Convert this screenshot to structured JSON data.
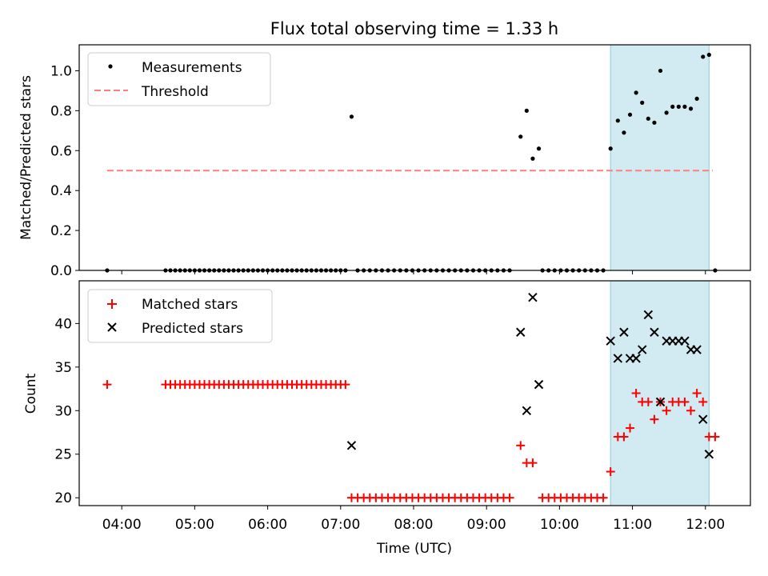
{
  "chart_data": [
    {
      "type": "scatter",
      "title": "Flux total observing time = 1.33 h",
      "xlabel": "",
      "ylabel": "Matched/Predicted stars",
      "xlim": [
        "03:25",
        "12:37"
      ],
      "ylim": [
        0,
        1.13
      ],
      "yticks": [
        0.0,
        0.2,
        0.4,
        0.6,
        0.8,
        1.0
      ],
      "ytick_labels": [
        "0.0",
        "0.2",
        "0.4",
        "0.6",
        "0.8",
        "1.0"
      ],
      "legend_position": "top-left",
      "highlight_span": {
        "from": "10:42",
        "to": "12:03",
        "color": "#add8e6"
      },
      "series": [
        {
          "name": "Measurements",
          "kind": "dots",
          "color": "#000000",
          "points": [
            [
              "03:48",
              0.0
            ],
            [
              "04:36",
              0.0
            ],
            [
              "04:40",
              0.0
            ],
            [
              "04:44",
              0.0
            ],
            [
              "04:48",
              0.0
            ],
            [
              "04:52",
              0.0
            ],
            [
              "04:56",
              0.0
            ],
            [
              "05:00",
              0.0
            ],
            [
              "05:04",
              0.0
            ],
            [
              "05:08",
              0.0
            ],
            [
              "05:12",
              0.0
            ],
            [
              "05:16",
              0.0
            ],
            [
              "05:20",
              0.0
            ],
            [
              "05:24",
              0.0
            ],
            [
              "05:28",
              0.0
            ],
            [
              "05:32",
              0.0
            ],
            [
              "05:36",
              0.0
            ],
            [
              "05:40",
              0.0
            ],
            [
              "05:44",
              0.0
            ],
            [
              "05:48",
              0.0
            ],
            [
              "05:52",
              0.0
            ],
            [
              "05:56",
              0.0
            ],
            [
              "06:00",
              0.0
            ],
            [
              "06:04",
              0.0
            ],
            [
              "06:08",
              0.0
            ],
            [
              "06:12",
              0.0
            ],
            [
              "06:16",
              0.0
            ],
            [
              "06:20",
              0.0
            ],
            [
              "06:24",
              0.0
            ],
            [
              "06:28",
              0.0
            ],
            [
              "06:32",
              0.0
            ],
            [
              "06:36",
              0.0
            ],
            [
              "06:40",
              0.0
            ],
            [
              "06:44",
              0.0
            ],
            [
              "06:48",
              0.0
            ],
            [
              "06:52",
              0.0
            ],
            [
              "06:56",
              0.0
            ],
            [
              "07:00",
              0.0
            ],
            [
              "07:04",
              0.0
            ],
            [
              "07:09",
              0.77
            ],
            [
              "07:14",
              0.0
            ],
            [
              "07:19",
              0.0
            ],
            [
              "07:24",
              0.0
            ],
            [
              "07:29",
              0.0
            ],
            [
              "07:34",
              0.0
            ],
            [
              "07:39",
              0.0
            ],
            [
              "07:44",
              0.0
            ],
            [
              "07:49",
              0.0
            ],
            [
              "07:54",
              0.0
            ],
            [
              "07:59",
              0.0
            ],
            [
              "08:04",
              0.0
            ],
            [
              "08:09",
              0.0
            ],
            [
              "08:14",
              0.0
            ],
            [
              "08:19",
              0.0
            ],
            [
              "08:24",
              0.0
            ],
            [
              "08:29",
              0.0
            ],
            [
              "08:34",
              0.0
            ],
            [
              "08:39",
              0.0
            ],
            [
              "08:44",
              0.0
            ],
            [
              "08:49",
              0.0
            ],
            [
              "08:54",
              0.0
            ],
            [
              "08:59",
              0.0
            ],
            [
              "09:04",
              0.0
            ],
            [
              "09:09",
              0.0
            ],
            [
              "09:14",
              0.0
            ],
            [
              "09:19",
              0.0
            ],
            [
              "09:28",
              0.67
            ],
            [
              "09:33",
              0.8
            ],
            [
              "09:38",
              0.56
            ],
            [
              "09:43",
              0.61
            ],
            [
              "09:46",
              0.0
            ],
            [
              "09:51",
              0.0
            ],
            [
              "09:56",
              0.0
            ],
            [
              "10:01",
              0.0
            ],
            [
              "10:06",
              0.0
            ],
            [
              "10:11",
              0.0
            ],
            [
              "10:16",
              0.0
            ],
            [
              "10:21",
              0.0
            ],
            [
              "10:26",
              0.0
            ],
            [
              "10:31",
              0.0
            ],
            [
              "10:36",
              0.0
            ],
            [
              "10:42",
              0.61
            ],
            [
              "10:48",
              0.75
            ],
            [
              "10:53",
              0.69
            ],
            [
              "10:58",
              0.78
            ],
            [
              "11:03",
              0.89
            ],
            [
              "11:08",
              0.84
            ],
            [
              "11:13",
              0.76
            ],
            [
              "11:18",
              0.74
            ],
            [
              "11:23",
              1.0
            ],
            [
              "11:28",
              0.79
            ],
            [
              "11:33",
              0.82
            ],
            [
              "11:38",
              0.82
            ],
            [
              "11:43",
              0.82
            ],
            [
              "11:48",
              0.81
            ],
            [
              "11:53",
              0.86
            ],
            [
              "11:58",
              1.07
            ],
            [
              "12:03",
              1.08
            ],
            [
              "12:08",
              0.0
            ]
          ]
        },
        {
          "name": "Threshold",
          "kind": "dashed-line",
          "color": "#ff7f7f",
          "points": [
            [
              "03:48",
              0.5
            ],
            [
              "12:06",
              0.5
            ]
          ]
        }
      ]
    },
    {
      "type": "scatter",
      "title": "",
      "xlabel": "Time (UTC)",
      "ylabel": "Count",
      "xlim": [
        "03:25",
        "12:37"
      ],
      "ylim": [
        19.1,
        44.9
      ],
      "yticks": [
        20,
        25,
        30,
        35,
        40
      ],
      "ytick_labels": [
        "20",
        "25",
        "30",
        "35",
        "40"
      ],
      "xticks": [
        "04:00",
        "05:00",
        "06:00",
        "07:00",
        "08:00",
        "09:00",
        "10:00",
        "11:00",
        "12:00"
      ],
      "xtick_labels": [
        "04:00",
        "05:00",
        "06:00",
        "07:00",
        "08:00",
        "09:00",
        "10:00",
        "11:00",
        "12:00"
      ],
      "legend_position": "top-left",
      "highlight_span": {
        "from": "10:42",
        "to": "12:03",
        "color": "#add8e6"
      },
      "series": [
        {
          "name": "Matched stars",
          "kind": "plus",
          "color": "#ff0000",
          "points": [
            [
              "03:48",
              33
            ],
            [
              "04:36",
              33
            ],
            [
              "04:40",
              33
            ],
            [
              "04:44",
              33
            ],
            [
              "04:48",
              33
            ],
            [
              "04:52",
              33
            ],
            [
              "04:56",
              33
            ],
            [
              "05:00",
              33
            ],
            [
              "05:04",
              33
            ],
            [
              "05:08",
              33
            ],
            [
              "05:12",
              33
            ],
            [
              "05:16",
              33
            ],
            [
              "05:20",
              33
            ],
            [
              "05:24",
              33
            ],
            [
              "05:28",
              33
            ],
            [
              "05:32",
              33
            ],
            [
              "05:36",
              33
            ],
            [
              "05:40",
              33
            ],
            [
              "05:44",
              33
            ],
            [
              "05:48",
              33
            ],
            [
              "05:52",
              33
            ],
            [
              "05:56",
              33
            ],
            [
              "06:00",
              33
            ],
            [
              "06:04",
              33
            ],
            [
              "06:08",
              33
            ],
            [
              "06:12",
              33
            ],
            [
              "06:16",
              33
            ],
            [
              "06:20",
              33
            ],
            [
              "06:24",
              33
            ],
            [
              "06:28",
              33
            ],
            [
              "06:32",
              33
            ],
            [
              "06:36",
              33
            ],
            [
              "06:40",
              33
            ],
            [
              "06:44",
              33
            ],
            [
              "06:48",
              33
            ],
            [
              "06:52",
              33
            ],
            [
              "06:56",
              33
            ],
            [
              "07:00",
              33
            ],
            [
              "07:04",
              33
            ],
            [
              "07:09",
              20
            ],
            [
              "07:14",
              20
            ],
            [
              "07:19",
              20
            ],
            [
              "07:24",
              20
            ],
            [
              "07:29",
              20
            ],
            [
              "07:34",
              20
            ],
            [
              "07:39",
              20
            ],
            [
              "07:44",
              20
            ],
            [
              "07:49",
              20
            ],
            [
              "07:54",
              20
            ],
            [
              "07:59",
              20
            ],
            [
              "08:04",
              20
            ],
            [
              "08:09",
              20
            ],
            [
              "08:14",
              20
            ],
            [
              "08:19",
              20
            ],
            [
              "08:24",
              20
            ],
            [
              "08:29",
              20
            ],
            [
              "08:34",
              20
            ],
            [
              "08:39",
              20
            ],
            [
              "08:44",
              20
            ],
            [
              "08:49",
              20
            ],
            [
              "08:54",
              20
            ],
            [
              "08:59",
              20
            ],
            [
              "09:04",
              20
            ],
            [
              "09:09",
              20
            ],
            [
              "09:14",
              20
            ],
            [
              "09:19",
              20
            ],
            [
              "09:28",
              26
            ],
            [
              "09:33",
              24
            ],
            [
              "09:38",
              24
            ],
            [
              "09:46",
              20
            ],
            [
              "09:51",
              20
            ],
            [
              "09:56",
              20
            ],
            [
              "10:01",
              20
            ],
            [
              "10:06",
              20
            ],
            [
              "10:11",
              20
            ],
            [
              "10:16",
              20
            ],
            [
              "10:21",
              20
            ],
            [
              "10:26",
              20
            ],
            [
              "10:31",
              20
            ],
            [
              "10:36",
              20
            ],
            [
              "10:42",
              23
            ],
            [
              "10:48",
              27
            ],
            [
              "10:53",
              27
            ],
            [
              "10:58",
              28
            ],
            [
              "11:03",
              32
            ],
            [
              "11:08",
              31
            ],
            [
              "11:13",
              31
            ],
            [
              "11:18",
              29
            ],
            [
              "11:23",
              31
            ],
            [
              "11:28",
              30
            ],
            [
              "11:33",
              31
            ],
            [
              "11:38",
              31
            ],
            [
              "11:43",
              31
            ],
            [
              "11:48",
              30
            ],
            [
              "11:53",
              32
            ],
            [
              "11:58",
              31
            ],
            [
              "12:03",
              27
            ],
            [
              "12:08",
              27
            ]
          ]
        },
        {
          "name": "Predicted stars",
          "kind": "cross",
          "color": "#000000",
          "points": [
            [
              "07:09",
              26
            ],
            [
              "09:28",
              39
            ],
            [
              "09:33",
              30
            ],
            [
              "09:38",
              43
            ],
            [
              "09:43",
              33
            ],
            [
              "10:42",
              38
            ],
            [
              "10:48",
              36
            ],
            [
              "10:53",
              39
            ],
            [
              "10:58",
              36
            ],
            [
              "11:03",
              36
            ],
            [
              "11:08",
              37
            ],
            [
              "11:13",
              41
            ],
            [
              "11:18",
              39
            ],
            [
              "11:23",
              31
            ],
            [
              "11:28",
              38
            ],
            [
              "11:33",
              38
            ],
            [
              "11:38",
              38
            ],
            [
              "11:43",
              38
            ],
            [
              "11:48",
              37
            ],
            [
              "11:53",
              37
            ],
            [
              "11:58",
              29
            ],
            [
              "12:03",
              25
            ]
          ]
        }
      ]
    }
  ]
}
